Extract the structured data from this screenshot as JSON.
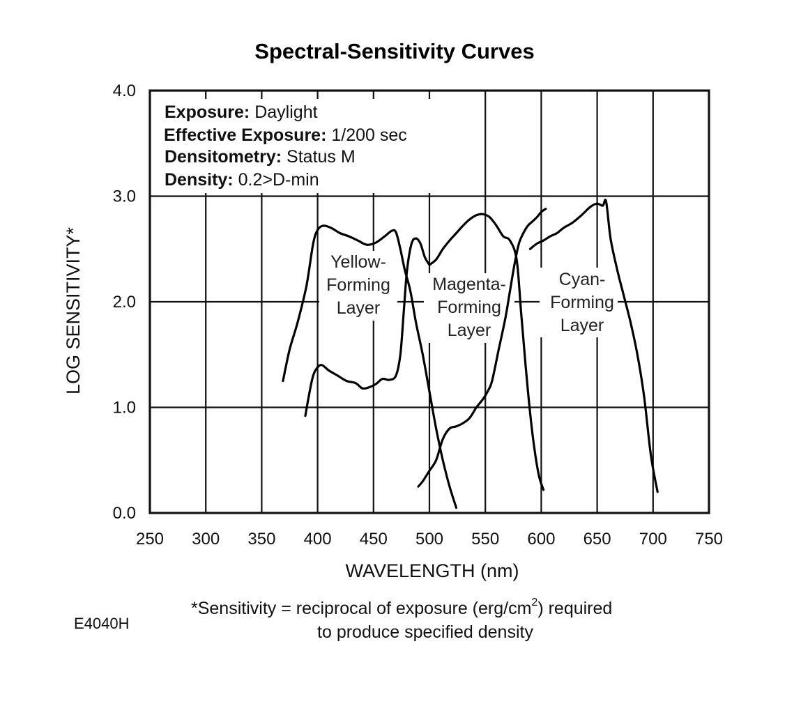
{
  "chart_data": {
    "type": "line",
    "title": "Spectral-Sensitivity Curves",
    "xlabel": "WAVELENGTH (nm)",
    "ylabel": "LOG SENSITIVITY*",
    "xlim": [
      250,
      750
    ],
    "ylim": [
      0.0,
      4.0
    ],
    "x_ticks": [
      "250",
      "300",
      "350",
      "400",
      "450",
      "500",
      "550",
      "600",
      "650",
      "700",
      "750"
    ],
    "y_ticks": [
      "0.0",
      "1.0",
      "2.0",
      "3.0",
      "4.0"
    ],
    "grid": true,
    "annotations": [
      {
        "label": "Exposure:",
        "value": "Daylight"
      },
      {
        "label": "Effective Exposure:",
        "value": "1/200 sec"
      },
      {
        "label": "Densitometry:",
        "value": "Status M"
      },
      {
        "label": "Density:",
        "value": "0.2>D-min"
      }
    ],
    "layer_labels": [
      {
        "lines": [
          "Yellow-",
          "Forming",
          "Layer"
        ]
      },
      {
        "lines": [
          "Magenta-",
          "Forming",
          "Layer"
        ]
      },
      {
        "lines": [
          "Cyan-",
          "Forming",
          "Layer"
        ]
      }
    ],
    "series": [
      {
        "x": [
          369,
          375,
          382,
          390,
          396,
          400,
          405,
          412,
          420,
          428,
          436,
          444,
          452,
          460,
          466,
          470,
          474,
          478,
          483,
          488,
          494,
          500,
          506,
          512,
          518,
          524
        ],
        "y": [
          1.25,
          1.55,
          1.8,
          2.15,
          2.55,
          2.68,
          2.72,
          2.7,
          2.65,
          2.62,
          2.58,
          2.54,
          2.56,
          2.62,
          2.67,
          2.66,
          2.5,
          2.3,
          2.1,
          1.8,
          1.5,
          1.15,
          0.8,
          0.5,
          0.25,
          0.05
        ]
      },
      {
        "x": [
          389,
          392,
          396,
          400,
          404,
          410,
          418,
          426,
          434,
          440,
          446,
          452,
          458,
          464,
          470,
          474,
          477,
          480,
          484,
          488,
          492,
          496,
          500
        ],
        "y": [
          0.92,
          1.1,
          1.3,
          1.38,
          1.4,
          1.35,
          1.3,
          1.25,
          1.23,
          1.18,
          1.19,
          1.22,
          1.27,
          1.26,
          1.3,
          1.5,
          1.9,
          2.3,
          2.55,
          2.6,
          2.55,
          2.42,
          2.35
        ]
      },
      {
        "x": [
          490,
          494,
          500,
          506,
          512,
          518,
          524,
          530,
          536,
          542,
          548,
          552,
          556,
          562,
          568,
          572,
          576,
          580,
          584,
          588,
          592,
          596,
          600,
          604
        ],
        "y": [
          0.25,
          0.3,
          0.4,
          0.5,
          0.7,
          0.8,
          0.82,
          0.85,
          0.9,
          1.0,
          1.08,
          1.15,
          1.25,
          1.55,
          1.85,
          2.1,
          2.35,
          2.55,
          2.65,
          2.72,
          2.76,
          2.8,
          2.85,
          2.88
        ]
      },
      {
        "x": [
          500,
          506,
          512,
          518,
          524,
          530,
          536,
          542,
          548,
          554,
          560,
          566,
          572,
          578,
          582,
          586,
          590,
          594,
          598,
          602
        ],
        "y": [
          2.35,
          2.4,
          2.5,
          2.58,
          2.65,
          2.72,
          2.78,
          2.82,
          2.83,
          2.8,
          2.72,
          2.62,
          2.58,
          2.4,
          1.9,
          1.4,
          0.95,
          0.6,
          0.35,
          0.22
        ]
      },
      {
        "x": [
          590,
          596,
          602,
          608,
          614,
          620,
          628,
          636,
          644,
          650,
          655,
          658,
          662,
          668,
          674,
          680,
          686,
          692,
          698,
          704
        ],
        "y": [
          2.5,
          2.55,
          2.58,
          2.62,
          2.65,
          2.7,
          2.75,
          2.82,
          2.9,
          2.93,
          2.91,
          2.95,
          2.6,
          2.3,
          2.05,
          1.8,
          1.5,
          1.1,
          0.55,
          0.2
        ]
      }
    ]
  },
  "notes": {
    "footnote_line1_a": "*Sensitivity = reciprocal of exposure (erg/cm",
    "footnote_sup": "2",
    "footnote_line1_b": ") required",
    "footnote_line2": "to produce specified density",
    "figure_code": "E4040H"
  }
}
